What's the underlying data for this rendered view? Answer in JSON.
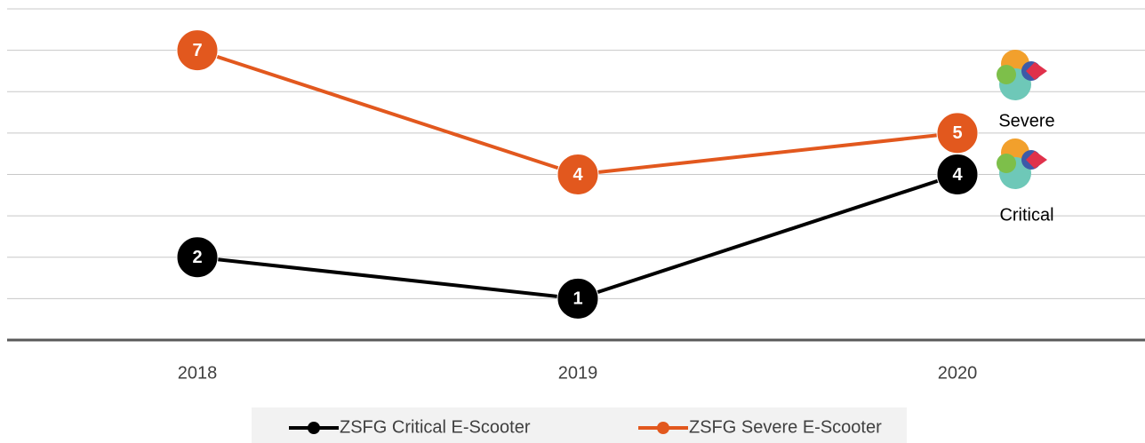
{
  "chart_data": {
    "type": "line",
    "categories": [
      "2018",
      "2019",
      "2020"
    ],
    "series": [
      {
        "name": "ZSFG Critical E-Scooter",
        "color": "#000000",
        "values": [
          2,
          1,
          4
        ]
      },
      {
        "name": "ZSFG Severe E-Scooter",
        "color": "#e2581e",
        "values": [
          7,
          4,
          5
        ]
      }
    ],
    "ylim": [
      0,
      8
    ],
    "yticks": [
      1,
      2,
      3,
      4,
      5,
      6,
      7,
      8
    ],
    "grid": true,
    "annotations": [
      "Severe",
      "Critical"
    ],
    "legend": "bottom"
  }
}
